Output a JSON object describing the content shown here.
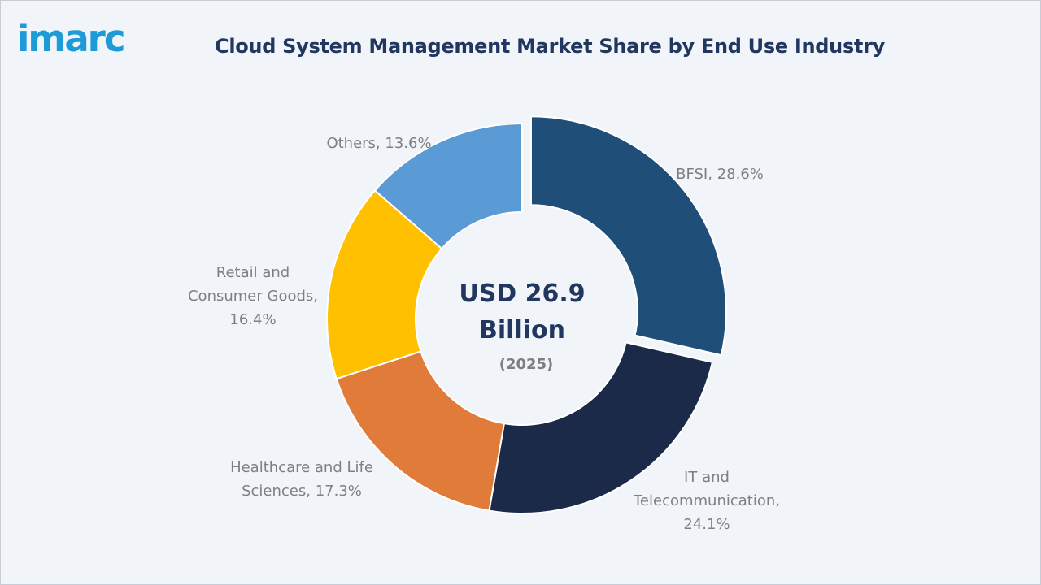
{
  "brand": {
    "logo_text": "imarc",
    "logo_color": "#1d9bd7"
  },
  "title": "Cloud System Management Market Share by End Use Industry",
  "center": {
    "value_line1": "USD 26.9",
    "value_line2": "Billion",
    "year": "(2025)",
    "color": "#21375f"
  },
  "chart_data": {
    "type": "pie",
    "variant": "donut",
    "title": "Cloud System Management Market Share by End Use Industry",
    "unit": "%",
    "series": [
      {
        "name": "BFSI",
        "value": 28.6,
        "color": "#1f4e79",
        "label_lines": [
          "BFSI, 28.6%"
        ],
        "exploded": true
      },
      {
        "name": "IT and Telecommunication",
        "value": 24.1,
        "color": "#1c2a4a",
        "label_lines": [
          "IT and",
          "Telecommunication,",
          "24.1%"
        ]
      },
      {
        "name": "Healthcare and Life Sciences",
        "value": 17.3,
        "color": "#e07b39",
        "label_lines": [
          "Healthcare and Life",
          "Sciences, 17.3%"
        ]
      },
      {
        "name": "Retail and Consumer Goods",
        "value": 16.4,
        "color": "#ffc000",
        "label_lines": [
          "Retail and",
          "Consumer Goods,",
          "16.4%"
        ]
      },
      {
        "name": "Others",
        "value": 13.6,
        "color": "#5b9bd5",
        "label_lines": [
          "Others, 13.6%"
        ]
      }
    ]
  }
}
